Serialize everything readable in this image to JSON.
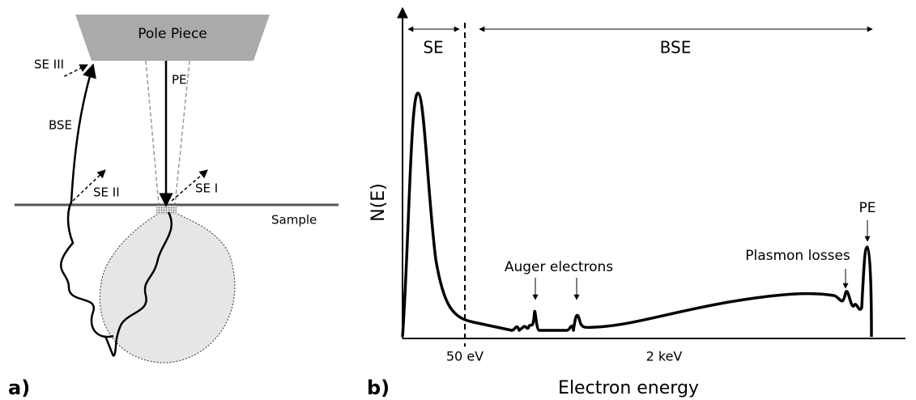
{
  "panel_a": {
    "label": "a)",
    "pole_piece": "Pole Piece",
    "se3": "SE III",
    "bse": "BSE",
    "se2": "SE II",
    "se1": "SE I",
    "pe": "PE",
    "sample": "Sample"
  },
  "panel_b": {
    "label": "b)",
    "se": "SE",
    "bse": "BSE",
    "y_axis": "N(E)",
    "x_ticks": [
      "50 eV",
      "2 keV"
    ],
    "x_axis": "Electron energy",
    "auger": "Auger electrons",
    "plasmon": "Plasmon losses",
    "pe": "PE"
  }
}
